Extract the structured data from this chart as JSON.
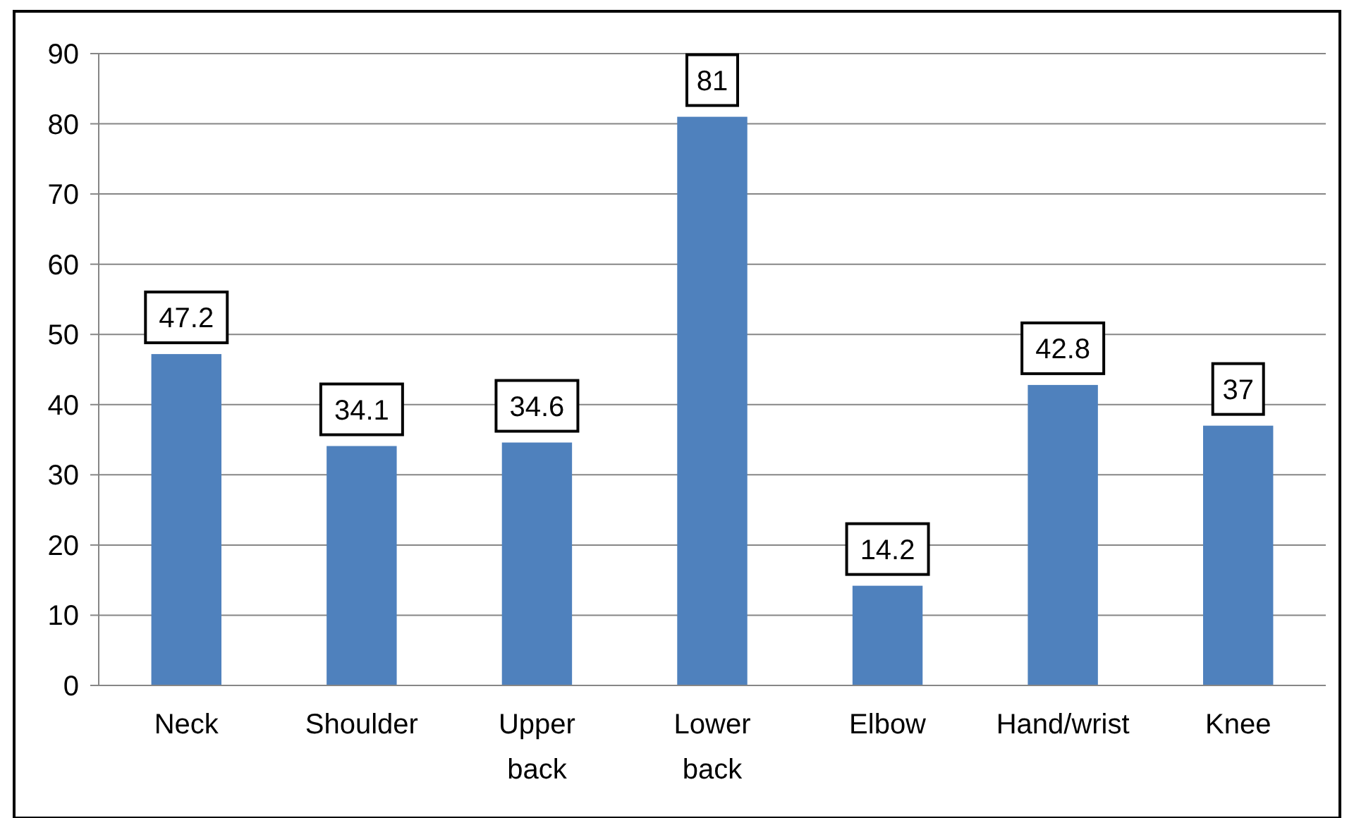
{
  "chart_data": {
    "type": "bar",
    "categories": [
      "Neck",
      "Shoulder",
      "Upper back",
      "Lower back",
      "Elbow",
      "Hand/wrist",
      "Knee"
    ],
    "values": [
      47.2,
      34.1,
      34.6,
      81,
      14.2,
      42.8,
      37
    ],
    "color": "#4f81bd",
    "ylim": [
      0,
      90
    ],
    "yticks": [
      0,
      10,
      20,
      30,
      40,
      50,
      60,
      70,
      80,
      90
    ],
    "grid": "y",
    "data_labels": true
  }
}
